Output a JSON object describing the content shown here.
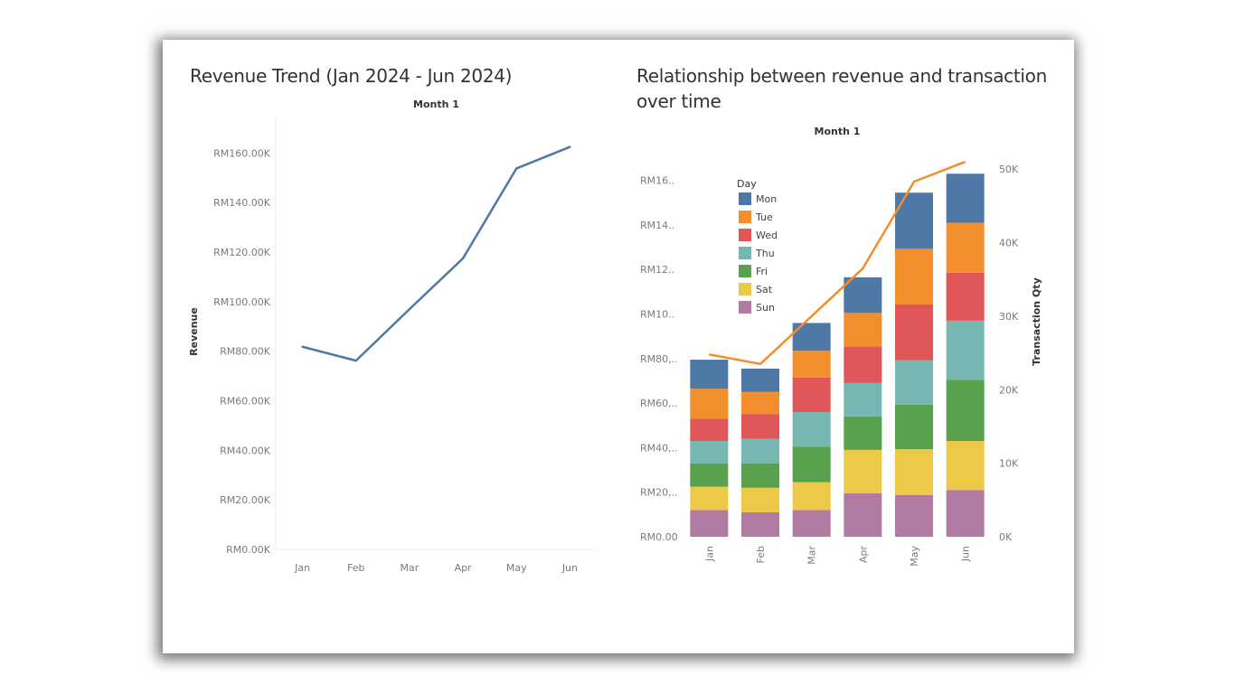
{
  "dashboard": {
    "colors": {
      "line": "#4e79a7",
      "trans_line": "#f28e2b",
      "axis_text": "#7a7a7a",
      "title_text": "#333333"
    }
  },
  "chart_data": [
    {
      "type": "line",
      "title": "Revenue Trend (Jan 2024 - Jun 2024)",
      "header": "Month 1",
      "ylabel": "Revenue",
      "categories": [
        "Jan",
        "Feb",
        "Mar",
        "Apr",
        "May",
        "Jun"
      ],
      "yticks": [
        "RM0.00K",
        "RM20.00K",
        "RM40.00K",
        "RM60.00K",
        "RM80.00K",
        "RM100.00K",
        "RM120.00K",
        "RM140.00K",
        "RM160.00K"
      ],
      "ylim": [
        0,
        170000
      ],
      "grid": false,
      "series": [
        {
          "values": [
            81800,
            76200,
            97000,
            117500,
            153800,
            162500
          ]
        }
      ]
    },
    {
      "type": "bar",
      "stacked": true,
      "dual_axis": true,
      "title": "Relationship between revenue and transaction over time",
      "header": "Month 1",
      "y2label": "Transaction Qty",
      "categories": [
        "Jan",
        "Feb",
        "Mar",
        "Apr",
        "May",
        "Jun"
      ],
      "yticks": [
        "RM0.00",
        "RM20,..",
        "RM40,..",
        "RM60,..",
        "RM80,..",
        "RM10..",
        "RM12..",
        "RM14..",
        "RM16.."
      ],
      "ylim": [
        0,
        170000
      ],
      "y2ticks": [
        "0K",
        "10K",
        "20K",
        "30K",
        "40K",
        "50K"
      ],
      "y2lim": [
        0,
        51500
      ],
      "legend": {
        "title": "Day",
        "position": "top-left"
      },
      "series": [
        {
          "name": "Sun",
          "color": "#b07aa1",
          "values": [
            12000,
            11000,
            12000,
            19500,
            18800,
            21000
          ]
        },
        {
          "name": "Sat",
          "color": "#edc948",
          "values": [
            10500,
            11000,
            12500,
            19500,
            20500,
            22000
          ]
        },
        {
          "name": "Fri",
          "color": "#59a14f",
          "values": [
            10500,
            11000,
            16000,
            15000,
            20000,
            27500
          ]
        },
        {
          "name": "Thu",
          "color": "#76b7b2",
          "values": [
            10000,
            11000,
            15500,
            15000,
            20000,
            26500
          ]
        },
        {
          "name": "Wed",
          "color": "#e15759",
          "values": [
            10000,
            11000,
            15500,
            16500,
            25000,
            21500
          ]
        },
        {
          "name": "Tue",
          "color": "#f28e2b",
          "values": [
            13500,
            10000,
            12000,
            15000,
            25000,
            22500
          ]
        },
        {
          "name": "Mon",
          "color": "#4e79a7",
          "values": [
            13000,
            10500,
            12500,
            16000,
            25200,
            22000
          ]
        }
      ],
      "line_series": {
        "name": "Transaction Qty",
        "axis": "right",
        "values": [
          24800,
          23500,
          30000,
          36500,
          48300,
          51000
        ]
      }
    }
  ]
}
